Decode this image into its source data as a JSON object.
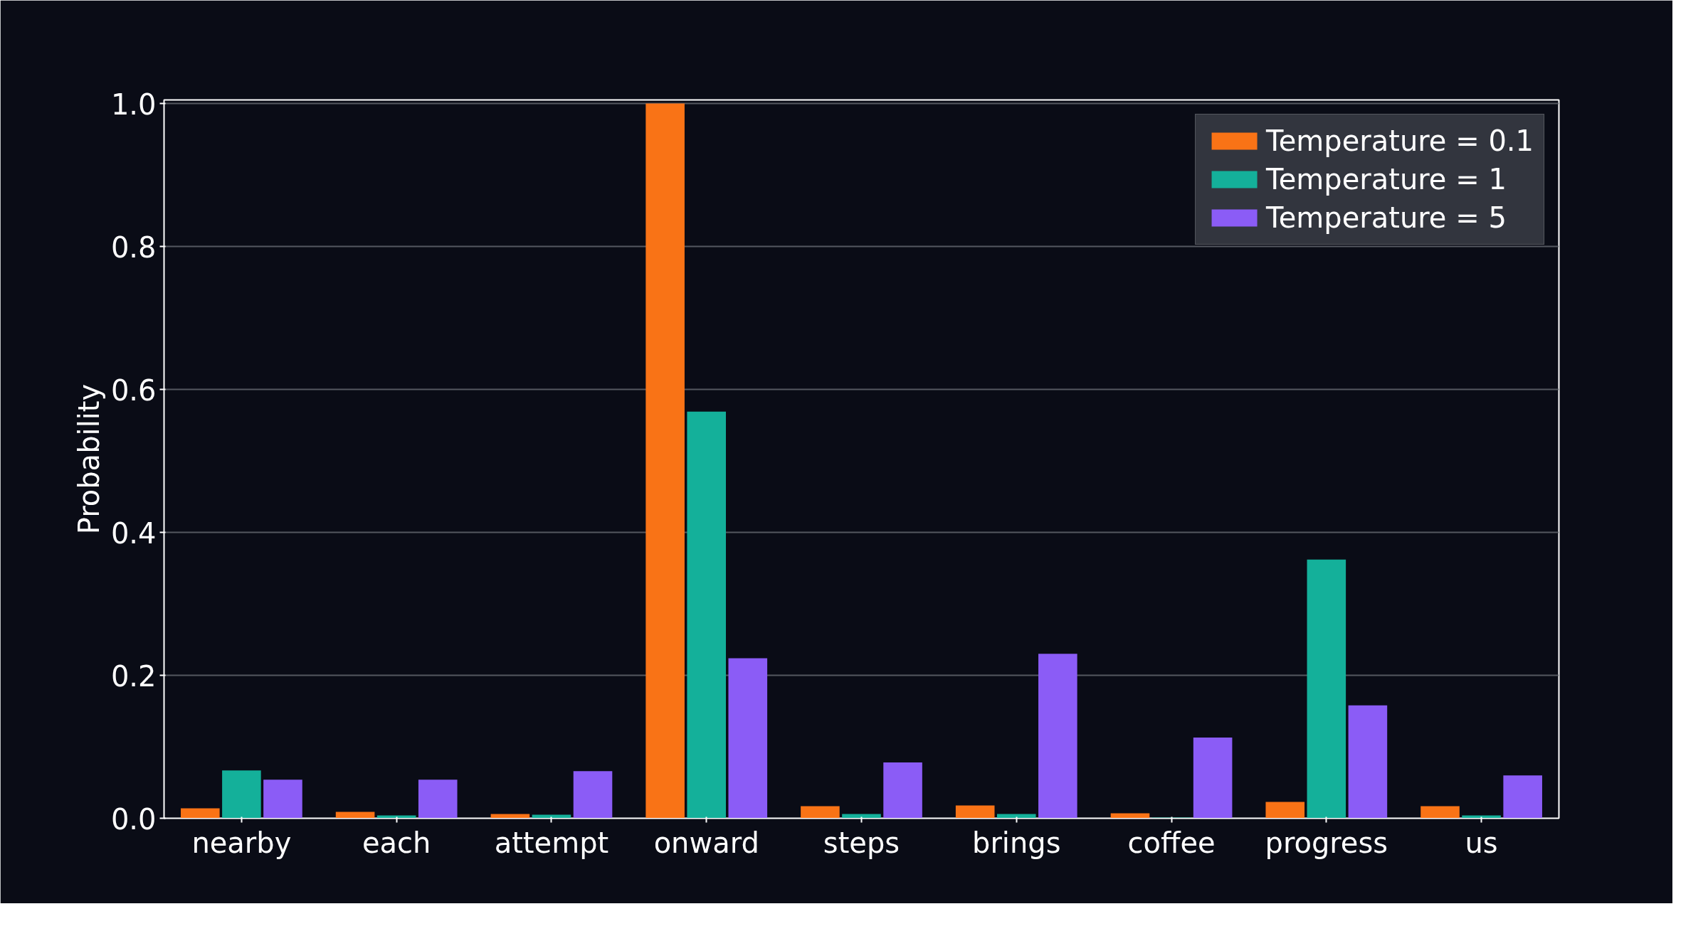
{
  "chart_data": {
    "type": "bar",
    "ylabel": "Probability",
    "categories": [
      "nearby",
      "each",
      "attempt",
      "onward",
      "steps",
      "brings",
      "coffee",
      "progress",
      "us"
    ],
    "series": [
      {
        "name": "Temperature = 0.1",
        "color": "#f97316",
        "values": [
          0.014,
          0.009,
          0.006,
          1.0,
          0.017,
          0.018,
          0.007,
          0.023,
          0.017
        ]
      },
      {
        "name": "Temperature = 1",
        "color": "#14b09a",
        "values": [
          0.067,
          0.004,
          0.005,
          0.569,
          0.006,
          0.006,
          0.001,
          0.362,
          0.004
        ]
      },
      {
        "name": "Temperature = 5",
        "color": "#8b5cf6",
        "values": [
          0.054,
          0.054,
          0.066,
          0.224,
          0.078,
          0.23,
          0.113,
          0.158,
          0.06
        ]
      }
    ],
    "ylim": [
      0,
      1.005
    ],
    "yticks": [
      {
        "value": 0,
        "label": "0.0"
      },
      0.2,
      0.4,
      0.6,
      0.8,
      {
        "value": 1,
        "label": "1.0"
      }
    ],
    "grid": "y",
    "legend": "top right"
  }
}
